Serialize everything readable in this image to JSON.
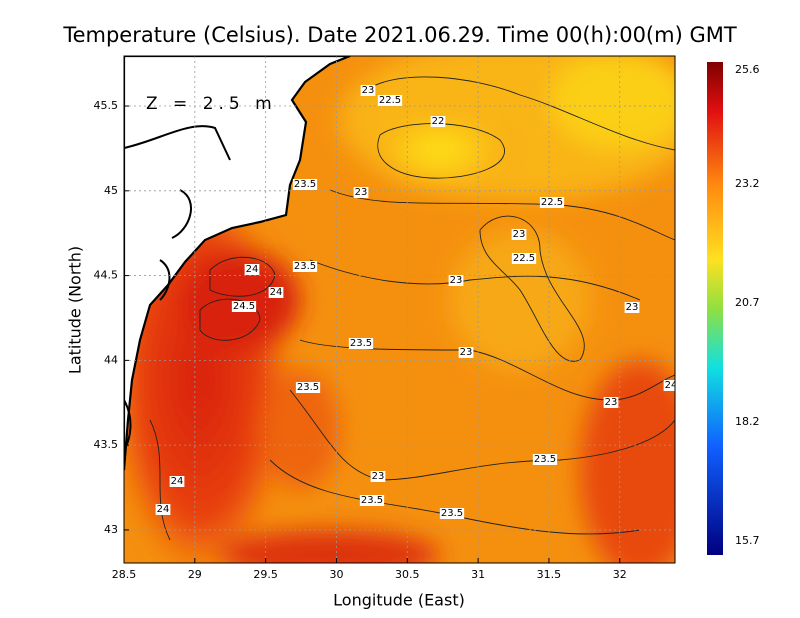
{
  "map": {
    "title": "Temperature (Celsius). Date 2021.06.29. Time 00(h):00(m) GMT",
    "xlabel": "Longitude (East)",
    "ylabel": "Latitude (North)",
    "annotation": "Z = 2.5 m",
    "xlim": [
      28.5,
      32.39
    ],
    "ylim": [
      42.805,
      45.795
    ],
    "xticks": [
      28.5,
      29,
      29.5,
      30,
      30.5,
      31,
      31.5,
      32
    ],
    "yticks": [
      43,
      43.5,
      44,
      44.5,
      45,
      45.5
    ],
    "grid": true,
    "colorbar": {
      "lim": [
        15.7,
        25.6
      ],
      "ticks": [
        15.7,
        18.2,
        20.7,
        23.2,
        25.6
      ]
    },
    "contour_labels": [
      23,
      22.5,
      22,
      23.5,
      23,
      22.5,
      23,
      24,
      23.5,
      22.5,
      24,
      23,
      24.5,
      23,
      23.5,
      23,
      23.5,
      24,
      23,
      23.5,
      23,
      24,
      23.5,
      24,
      23.5
    ]
  }
}
